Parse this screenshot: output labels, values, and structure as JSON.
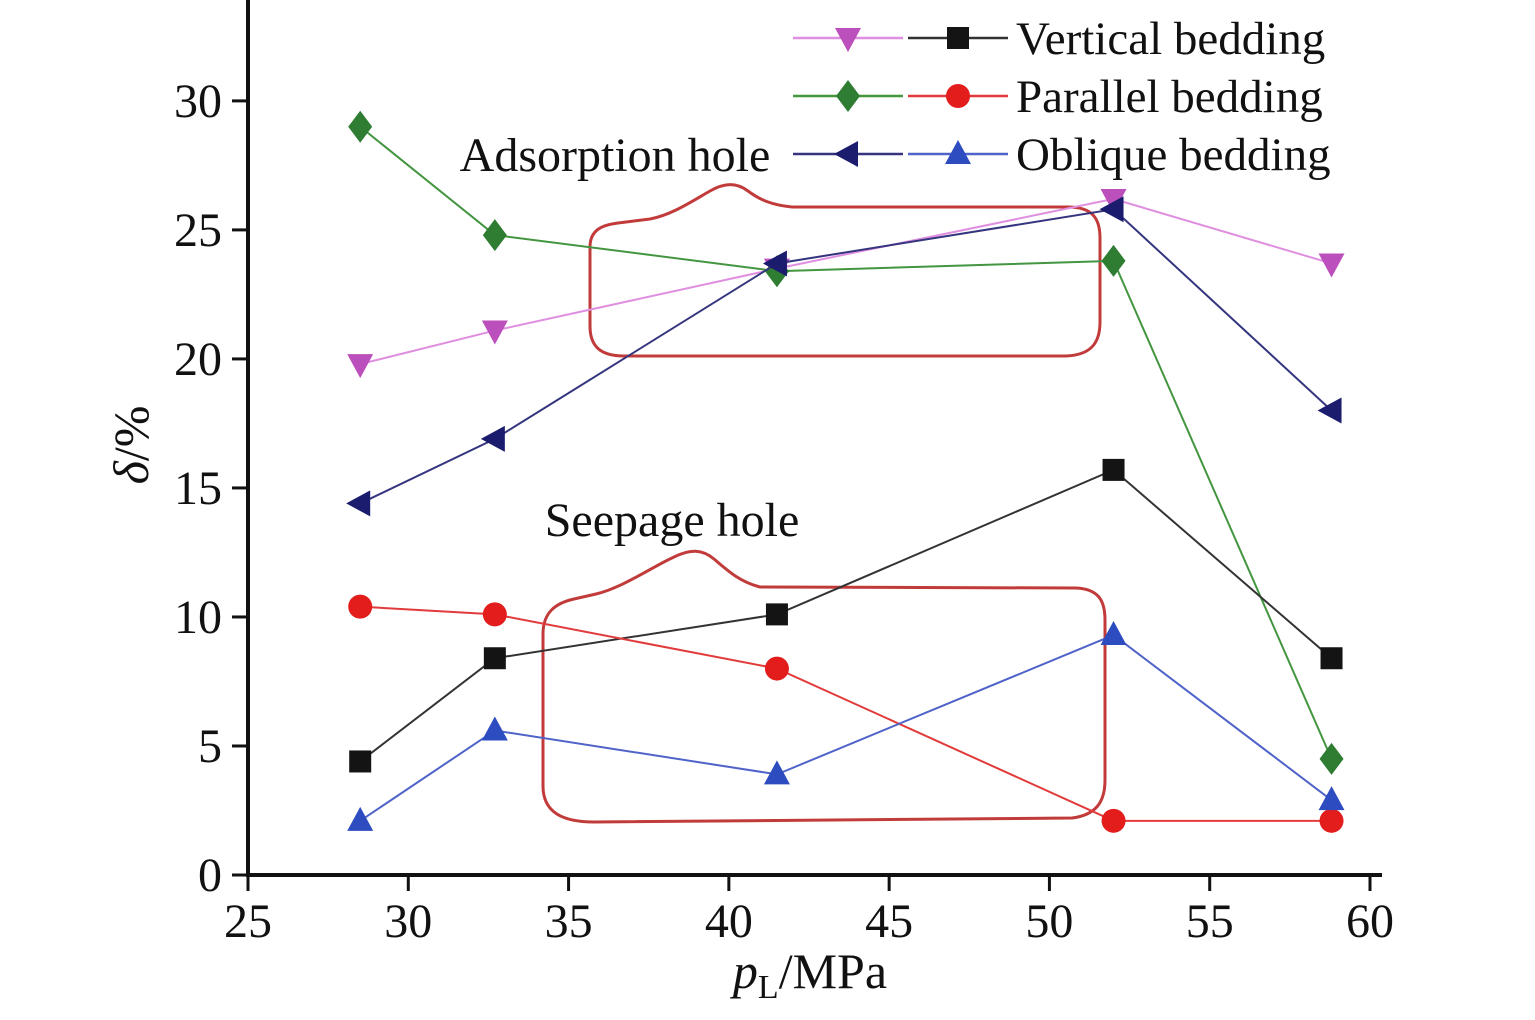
{
  "figure": {
    "background": "#ffffff"
  },
  "chart_data": {
    "type": "line",
    "title": "",
    "xlabel": "pL/MPa",
    "ylabel": "δ/%",
    "label_parts": {
      "x_italic": "p",
      "x_sub": "L",
      "x_rest": "/MPa",
      "y_italic": "δ",
      "y_rest": "/%"
    },
    "xlim": [
      25,
      60
    ],
    "ylim": [
      0,
      33.6
    ],
    "xticks": [
      25,
      30,
      35,
      40,
      45,
      50,
      55,
      60
    ],
    "yticks": [
      0,
      5,
      10,
      15,
      20,
      25,
      30
    ],
    "grid": false,
    "legend_position": "top-right",
    "x": [
      28.5,
      32.7,
      41.5,
      52,
      58.8
    ],
    "series": [
      {
        "id": "vertical-bedding-adsorption",
        "name": "Vertical bedding (adsorption hole)",
        "marker": "triangle-down",
        "color": "#bb4fbb",
        "line_color": "#e08fe0",
        "values": [
          19.8,
          21.1,
          23.5,
          26.2,
          23.7
        ]
      },
      {
        "id": "parallel-bedding-adsorption",
        "name": "Parallel bedding (adsorption hole)",
        "marker": "diamond",
        "color": "#2e7d32",
        "line_color": "#43953f",
        "values": [
          29.0,
          24.8,
          23.4,
          23.8,
          4.5
        ]
      },
      {
        "id": "oblique-bedding-adsorption",
        "name": "Oblique bedding (adsorption hole)",
        "marker": "triangle-left",
        "color": "#1c1c6e",
        "line_color": "#35357f",
        "values": [
          14.4,
          16.9,
          23.7,
          25.8,
          18.0
        ]
      },
      {
        "id": "vertical-bedding-seepage",
        "name": "Vertical bedding (seepage hole)",
        "marker": "square",
        "color": "#141414",
        "line_color": "#333333",
        "values": [
          4.4,
          8.4,
          10.1,
          15.7,
          8.4
        ]
      },
      {
        "id": "parallel-bedding-seepage",
        "name": "Parallel bedding (seepage hole)",
        "marker": "circle",
        "color": "#e31c1c",
        "line_color": "#e23b3b",
        "values": [
          10.4,
          10.1,
          8.0,
          2.1,
          2.1
        ]
      },
      {
        "id": "oblique-bedding-seepage",
        "name": "Oblique bedding (seepage hole)",
        "marker": "triangle-up",
        "color": "#2d4cc0",
        "line_color": "#4f63c9",
        "values": [
          2.1,
          5.6,
          3.9,
          9.3,
          2.9
        ]
      }
    ],
    "legend": [
      {
        "label": "Vertical bedding",
        "series": [
          0,
          3
        ]
      },
      {
        "label": "Parallel bedding",
        "series": [
          1,
          4
        ]
      },
      {
        "label": "Oblique bedding",
        "series": [
          2,
          5
        ]
      }
    ],
    "annotations": [
      {
        "label": "Adsorption hole",
        "outline_color": "#c23b3b",
        "x_range": [
          35.5,
          51.6
        ],
        "y_range": [
          20.1,
          26.7
        ]
      },
      {
        "label": "Seepage hole",
        "outline_color": "#c23b3b",
        "x_range": [
          34.2,
          51.7
        ],
        "y_range": [
          2.0,
          12.4
        ]
      }
    ]
  }
}
